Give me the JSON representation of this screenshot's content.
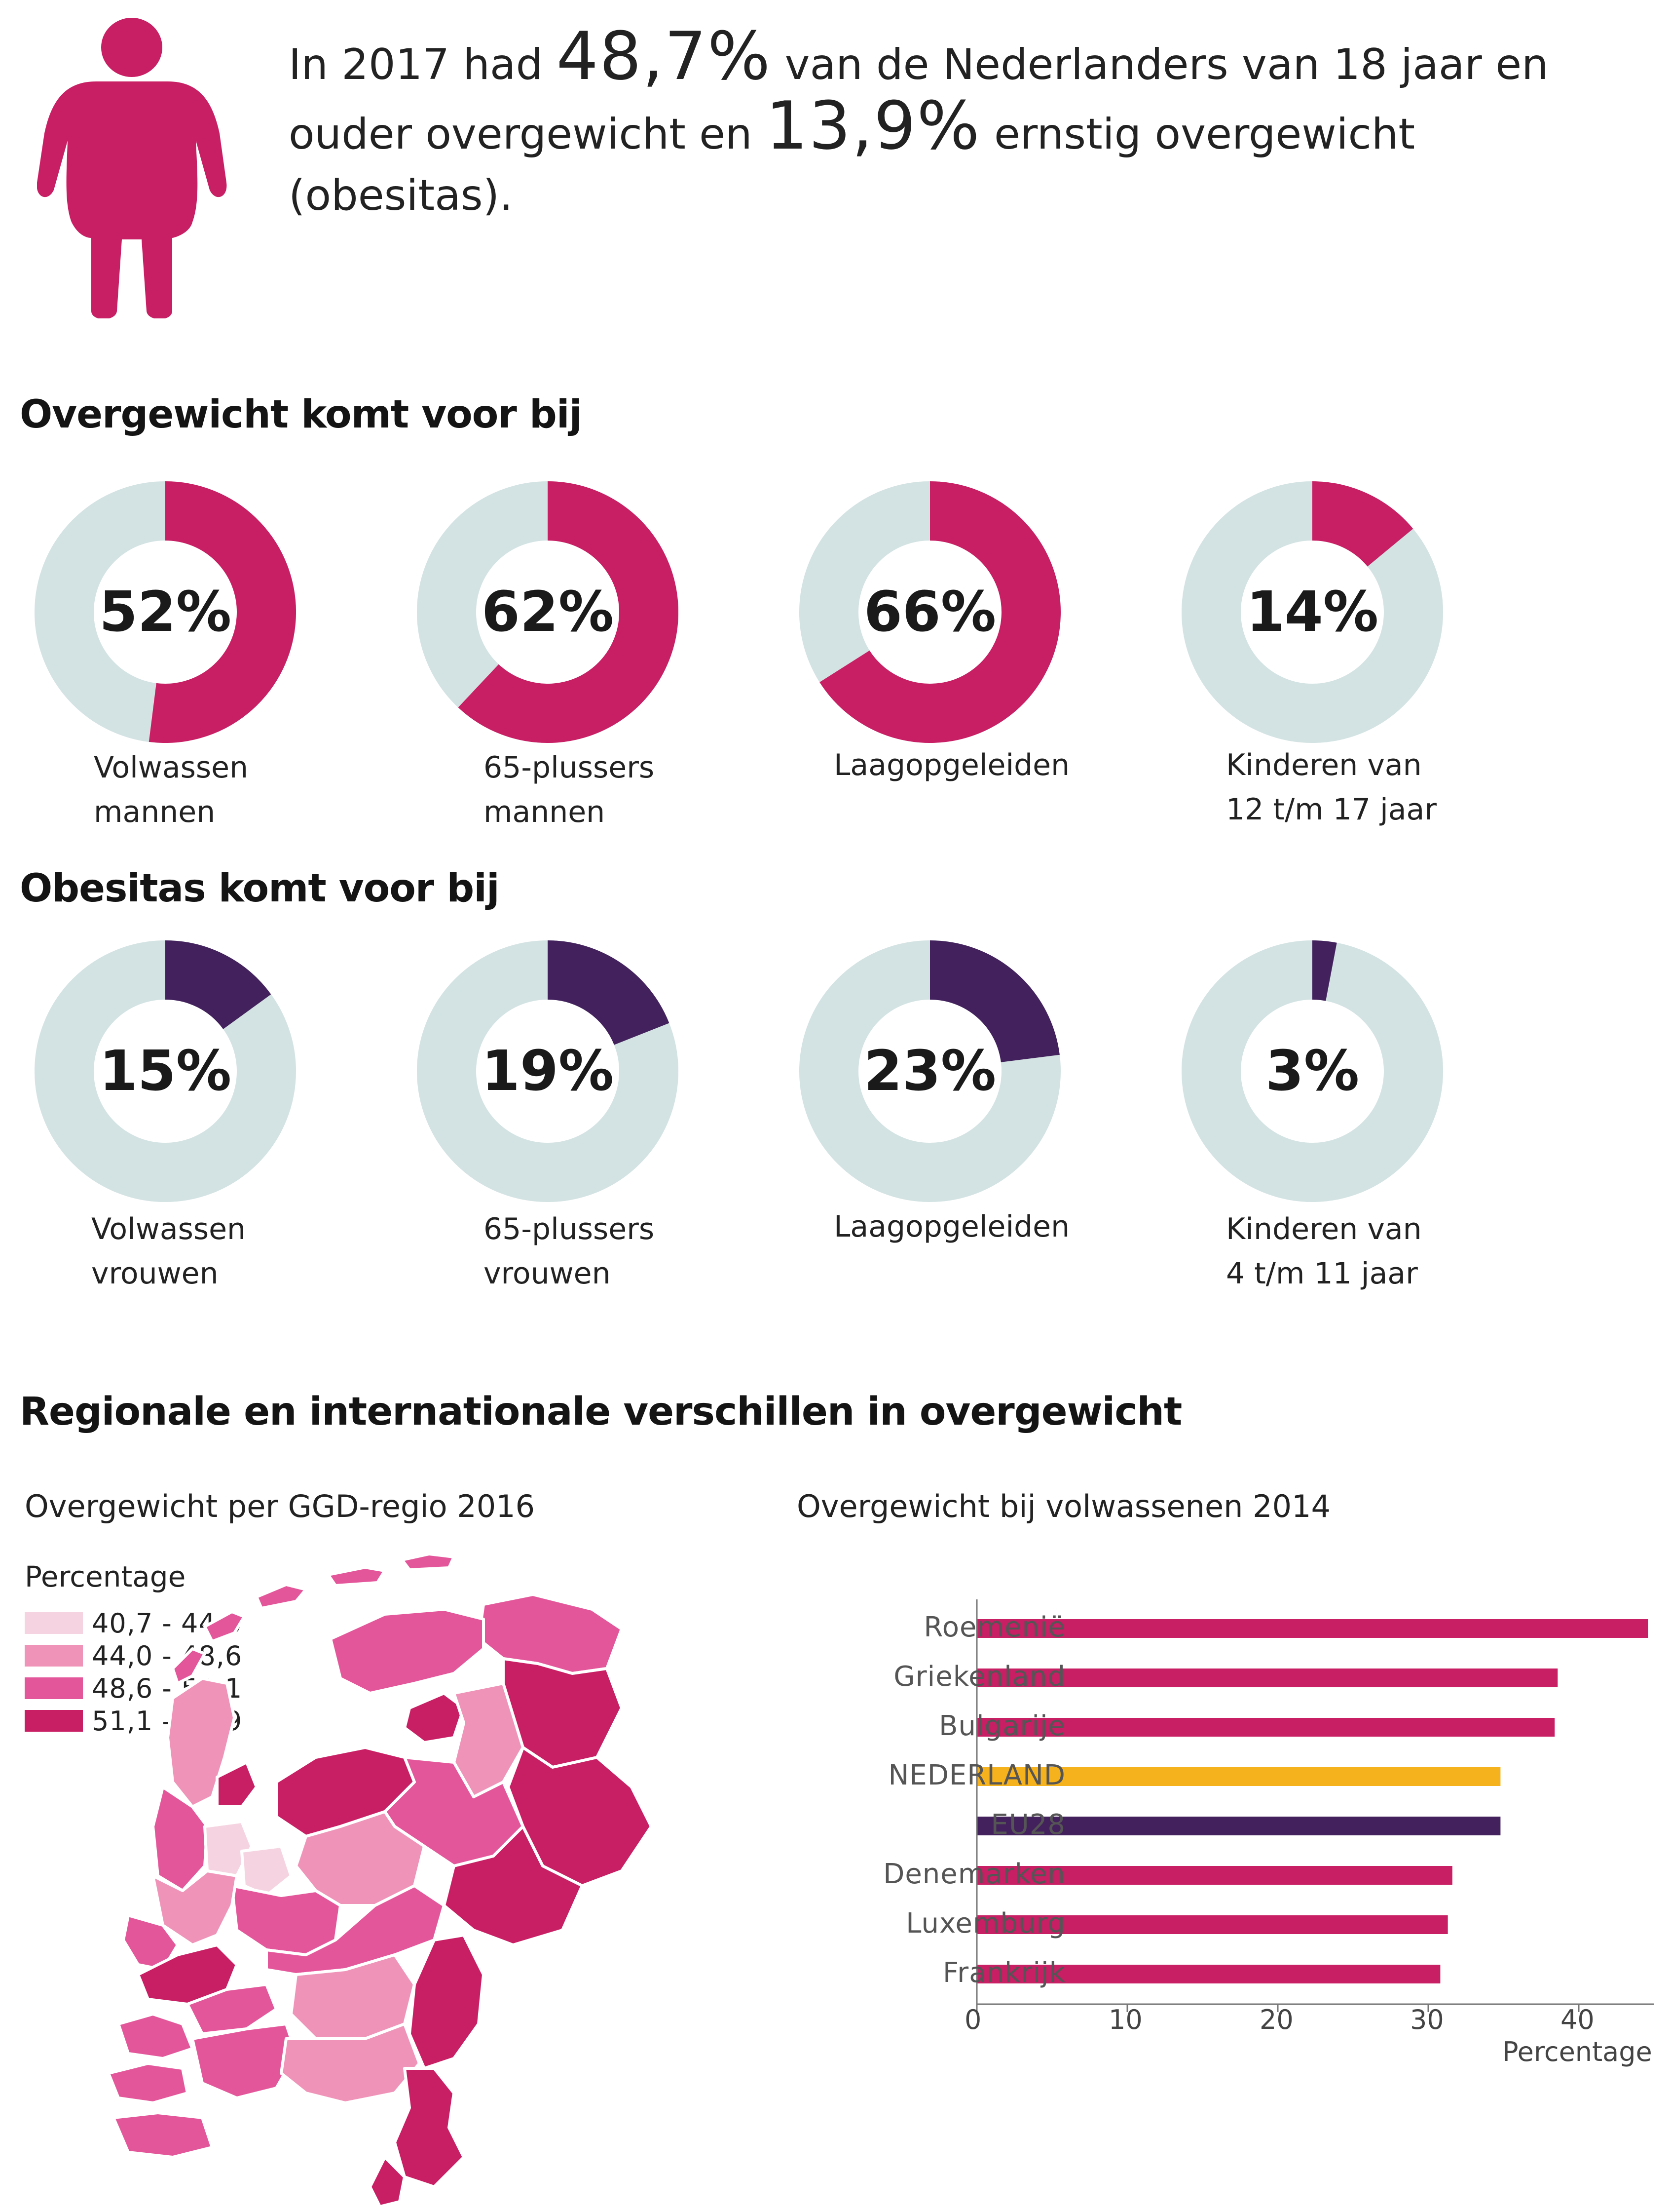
{
  "colors": {
    "magenta": "#c81e63",
    "donut_bg": "#d3e2e2",
    "obesity": "#42215c",
    "nl_highlight": "#f6b21c",
    "eu_bar": "#42215c",
    "map_1": "#f5d3e0",
    "map_2": "#ef93b8",
    "map_3": "#e3569a",
    "map_4": "#c81e63"
  },
  "intro": {
    "icon": "person-overweight-icon",
    "p1": "In 2017 had ",
    "val1": "48,7%",
    "p2": " van de Nederlanders van 18 jaar en ouder overgewicht en ",
    "val2": "13,9%",
    "p3": " ernstig overgewicht (obesitas)."
  },
  "sections": {
    "overweight_title": "Overgewicht komt voor bij",
    "obesity_title": "Obesitas komt voor bij",
    "regional_title": "Regionale en internationale verschillen in overgewicht"
  },
  "overweight_donuts": [
    {
      "value": 52,
      "pct_label": "52%",
      "line1": "Volwassen",
      "line2": "mannen"
    },
    {
      "value": 62,
      "pct_label": "62%",
      "line1": "65-plussers",
      "line2": "mannen"
    },
    {
      "value": 66,
      "pct_label": "66%",
      "line1": "Laagopgeleiden",
      "line2": ""
    },
    {
      "value": 14,
      "pct_label": "14%",
      "line1": "Kinderen van",
      "line2": "12 t/m 17 jaar"
    }
  ],
  "obesity_donuts": [
    {
      "value": 15,
      "pct_label": "15%",
      "line1": "Volwassen",
      "line2": "vrouwen"
    },
    {
      "value": 19,
      "pct_label": "19%",
      "line1": "65-plussers",
      "line2": "vrouwen"
    },
    {
      "value": 23,
      "pct_label": "23%",
      "line1": "Laagopgeleiden",
      "line2": ""
    },
    {
      "value": 3,
      "pct_label": "3%",
      "line1": "Kinderen van",
      "line2": "4 t/m 11 jaar"
    }
  ],
  "map": {
    "title": "Overgewicht per GGD-regio 2016",
    "legend_title": "Percentage",
    "legend": [
      {
        "label": "40,7 - 44,0",
        "color": "#f5d3e0"
      },
      {
        "label": "44,0 - 48,6",
        "color": "#ef93b8"
      },
      {
        "label": "48,6 - 51,1",
        "color": "#e3569a"
      },
      {
        "label": "51,1 - 52,9",
        "color": "#c81e63"
      }
    ]
  },
  "chart_data": {
    "type": "bar",
    "orientation": "horizontal",
    "title": "Overgewicht bij volwassenen 2014",
    "xlabel": "Percentage",
    "xlim": [
      0,
      45
    ],
    "xticks": [
      0,
      10,
      20,
      30,
      40
    ],
    "categories": [
      "Roemenië",
      "Griekenland",
      "Bulgarije",
      "NEDERLAND",
      "EU28",
      "Denemarken",
      "Luxemburg",
      "Frankrijk"
    ],
    "values": [
      44.6,
      38.6,
      38.4,
      34.8,
      34.8,
      31.6,
      31.3,
      30.8
    ],
    "bar_colors": [
      "#c81e63",
      "#c81e63",
      "#c81e63",
      "#f6b21c",
      "#42215c",
      "#c81e63",
      "#c81e63",
      "#c81e63"
    ]
  }
}
